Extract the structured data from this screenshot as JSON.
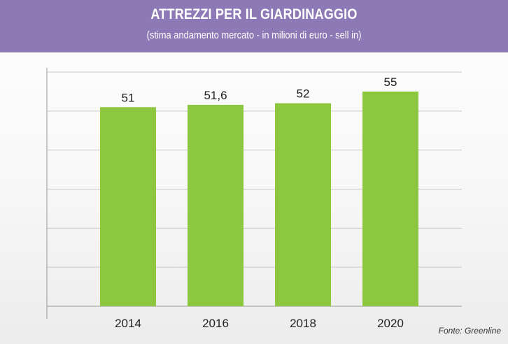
{
  "header": {
    "title": "ATTREZZI PER IL GIARDINAGGIO",
    "subtitle": "(stima andamento mercato - in milioni di euro - sell in)"
  },
  "source": "Fonte: Greenline",
  "colors": {
    "header_bg": "#8d79b5",
    "bar": "#8dc63f",
    "grid": "#c8c8c8",
    "axis": "#999999"
  },
  "chart_data": {
    "type": "bar",
    "title": "ATTREZZI PER IL GIARDINAGGIO",
    "subtitle": "(stima andamento mercato - in milioni di euro - sell in)",
    "xlabel": "",
    "ylabel": "",
    "categories": [
      "2014",
      "2016",
      "2018",
      "2020"
    ],
    "values": [
      51,
      51.6,
      52,
      55
    ],
    "value_labels": [
      "51",
      "51,6",
      "52",
      "55"
    ],
    "ylim": [
      0,
      60
    ],
    "grid": true,
    "legend": "none",
    "y_tick_labels_shown": false
  }
}
